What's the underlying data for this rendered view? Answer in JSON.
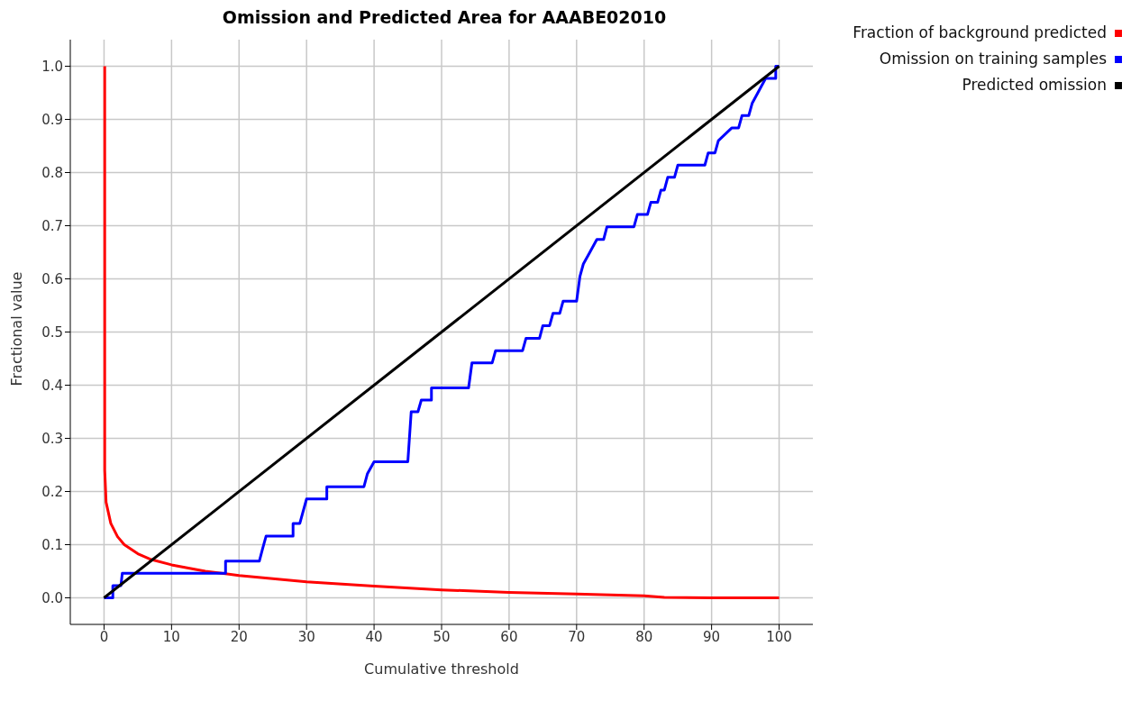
{
  "chart_data": {
    "type": "line",
    "title": "Omission and Predicted Area for AAABE02010",
    "xlabel": "Cumulative threshold",
    "ylabel": "Fractional value",
    "xlim": [
      -5,
      105
    ],
    "xticks": [
      0,
      10,
      20,
      30,
      40,
      50,
      60,
      70,
      80,
      90,
      100
    ],
    "ylim": [
      -0.05,
      1.05
    ],
    "yticks": [
      {
        "value": 0,
        "label": "0.0"
      },
      0.1,
      0.2,
      0.3,
      0.4,
      0.5,
      0.6,
      0.7,
      0.8,
      0.9,
      {
        "value": 1,
        "label": "1.0"
      }
    ],
    "grid": true,
    "legend": "top right",
    "marker": "none",
    "line_style": "solid",
    "series": [
      {
        "name": "Fraction of background predicted",
        "color": "#ff0000",
        "x": [
          0.1,
          0.1,
          0.3,
          1,
          2,
          3,
          5,
          7,
          10,
          15,
          20,
          30,
          40,
          50,
          60,
          70,
          80,
          83,
          90,
          100
        ],
        "values": [
          1.0,
          0.24,
          0.18,
          0.14,
          0.115,
          0.1,
          0.083,
          0.072,
          0.062,
          0.05,
          0.042,
          0.03,
          0.022,
          0.015,
          0.01,
          0.007,
          0.004,
          0.001,
          0,
          0
        ]
      },
      {
        "name": "Omission on training samples",
        "color": "#0000ff",
        "x": [
          0,
          1.3,
          1.3,
          2.5,
          2.7,
          18,
          18,
          23,
          23.5,
          24,
          28,
          28,
          29,
          30,
          33,
          33,
          38.5,
          39,
          40,
          45,
          45.5,
          46.5,
          47,
          48.5,
          48.5,
          54,
          54.5,
          57.5,
          58,
          62,
          62.5,
          64.5,
          65,
          66,
          66.5,
          67.5,
          68,
          70,
          70.5,
          71,
          72,
          73,
          74,
          74.5,
          78.5,
          79,
          80.5,
          81,
          82,
          82.5,
          83,
          83.5,
          84.5,
          85,
          89,
          89.5,
          90.5,
          91,
          93,
          94,
          94.5,
          95.5,
          96,
          98,
          99.5,
          99.5,
          100
        ],
        "values": [
          0,
          0,
          0.023,
          0.023,
          0.046,
          0.046,
          0.069,
          0.069,
          0.093,
          0.116,
          0.116,
          0.14,
          0.14,
          0.186,
          0.186,
          0.209,
          0.209,
          0.233,
          0.256,
          0.256,
          0.35,
          0.35,
          0.372,
          0.372,
          0.395,
          0.395,
          0.442,
          0.442,
          0.465,
          0.465,
          0.488,
          0.488,
          0.512,
          0.512,
          0.535,
          0.535,
          0.558,
          0.558,
          0.605,
          0.628,
          0.651,
          0.674,
          0.674,
          0.698,
          0.698,
          0.721,
          0.721,
          0.744,
          0.744,
          0.767,
          0.767,
          0.791,
          0.791,
          0.814,
          0.814,
          0.837,
          0.837,
          0.86,
          0.884,
          0.884,
          0.907,
          0.907,
          0.93,
          0.977,
          0.977,
          1.0,
          1.0
        ]
      },
      {
        "name": "Predicted omission",
        "color": "#000000",
        "x": [
          0,
          100
        ],
        "values": [
          0,
          1
        ]
      }
    ]
  }
}
